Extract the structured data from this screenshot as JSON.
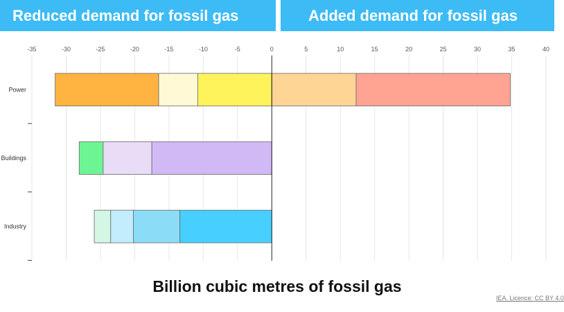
{
  "banners": {
    "left": "Reduced demand for fossil gas",
    "right": "Added demand for fossil gas"
  },
  "footer": {
    "axis_title": "Billion cubic metres of fossil gas",
    "credit": "IEA. Licence: CC BY 4.0"
  },
  "chart_data": {
    "type": "bar",
    "orientation": "horizontal",
    "stacked": true,
    "categories": [
      "Power",
      "Buildings",
      "Industry"
    ],
    "xlabel": "Billion cubic metres of fossil gas",
    "xlim": [
      -35,
      40
    ],
    "xticks": [
      -35,
      -30,
      -25,
      -20,
      -15,
      -10,
      -5,
      0,
      5,
      10,
      15,
      20,
      25,
      30,
      35,
      40
    ],
    "grid": true,
    "segments": {
      "Power": [
        {
          "from": -31.6,
          "to": -16.5,
          "color": "#ffb340"
        },
        {
          "from": -16.5,
          "to": -10.8,
          "color": "#fff9d6"
        },
        {
          "from": -10.8,
          "to": 0,
          "color": "#fff35c"
        },
        {
          "from": 0,
          "to": 12.3,
          "color": "#ffd596"
        },
        {
          "from": 12.3,
          "to": 34.8,
          "color": "#ffa392"
        }
      ],
      "Buildings": [
        {
          "from": -28.1,
          "to": -24.6,
          "color": "#6ef593"
        },
        {
          "from": -24.6,
          "to": -17.5,
          "color": "#e8dcf7"
        },
        {
          "from": -17.5,
          "to": 0,
          "color": "#d1b9f5"
        }
      ],
      "Industry": [
        {
          "from": -25.9,
          "to": -23.5,
          "color": "#d3f7e4"
        },
        {
          "from": -23.5,
          "to": -20.2,
          "color": "#c3ecfc"
        },
        {
          "from": -20.2,
          "to": -13.4,
          "color": "#8adcf7"
        },
        {
          "from": -13.4,
          "to": 0,
          "color": "#47cfff"
        }
      ]
    }
  }
}
